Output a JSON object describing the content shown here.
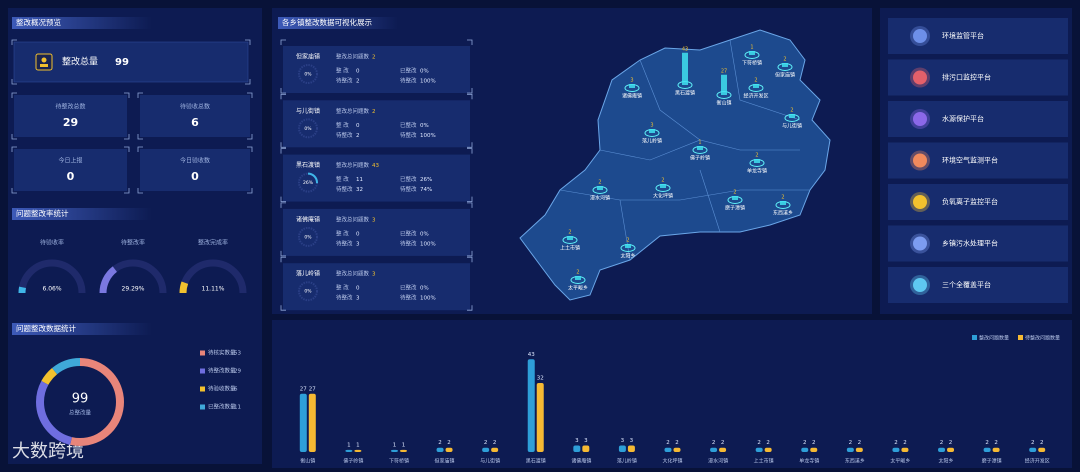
{
  "overview": {
    "title": "整改概况预览",
    "total": {
      "label": "整改总量",
      "value": 99
    },
    "stats": [
      {
        "label": "待整改总数",
        "value": 29
      },
      {
        "label": "待验收总数",
        "value": 6
      },
      {
        "label": "今日上报",
        "value": 0
      },
      {
        "label": "今日验收数",
        "value": 0
      }
    ]
  },
  "rates": {
    "title": "问题整改率统计",
    "items": [
      {
        "label": "待验收率",
        "value": 6.06,
        "value_label": "6.06%",
        "color": "#3fb6e8"
      },
      {
        "label": "待整改率",
        "value": 29.29,
        "value_label": "29.29%",
        "color": "#7a78e0"
      },
      {
        "label": "整改完成率",
        "value": 11.11,
        "value_label": "11.11%",
        "color": "#f2c12e"
      }
    ]
  },
  "donut": {
    "title": "问题整改数据统计",
    "total": 99,
    "total_label": "总整改量",
    "series": [
      {
        "name": "待核实数量",
        "value": 53,
        "color": "#e8857a"
      },
      {
        "name": "待整改数量",
        "value": 29,
        "color": "#6f6ee0"
      },
      {
        "name": "待验收数量",
        "value": 6,
        "color": "#f2c12e"
      },
      {
        "name": "已整改数量",
        "value": 11,
        "color": "#3fa9d9"
      }
    ]
  },
  "towns": {
    "title": "各乡镇整改数据可视化展示",
    "card_labels": {
      "total": "整改总问题数",
      "done": "整 改",
      "done_rate": "已整改",
      "todo": "待整改",
      "todo_rate": "待整改"
    },
    "cards": [
      {
        "name": "但家庙镇",
        "total": 2,
        "done": 0,
        "rate": 0,
        "rate_text": "0%",
        "todo": 2,
        "todo_rate": "100%"
      },
      {
        "name": "与儿街镇",
        "total": 2,
        "done": 0,
        "rate": 0,
        "rate_text": "0%",
        "todo": 2,
        "todo_rate": "100%"
      },
      {
        "name": "黑石渡镇",
        "total": 43,
        "done": 11,
        "rate": 26,
        "rate_text": "26%",
        "todo": 32,
        "todo_rate": "74%"
      },
      {
        "name": "诸佛庵镇",
        "total": 3,
        "done": 0,
        "rate": 0,
        "rate_text": "0%",
        "todo": 3,
        "todo_rate": "100%"
      },
      {
        "name": "落儿岭镇",
        "total": 3,
        "done": 0,
        "rate": 0,
        "rate_text": "0%",
        "todo": 3,
        "todo_rate": "100%"
      }
    ]
  },
  "platforms": [
    {
      "name": "环境监管平台",
      "color": "#6d8fe8"
    },
    {
      "name": "排污口监控平台",
      "color": "#e4606a"
    },
    {
      "name": "水源保护平台",
      "color": "#8b68e8"
    },
    {
      "name": "环境空气监测平台",
      "color": "#f08a5d"
    },
    {
      "name": "负氧离子监控平台",
      "color": "#f2c12e"
    },
    {
      "name": "乡镇污水处理平台",
      "color": "#7c9cf0"
    },
    {
      "name": "三个全覆盖平台",
      "color": "#5ec8f0"
    }
  ],
  "bar_chart": {
    "type": "bar",
    "categories": [
      "衡山镇",
      "佛子岭镇",
      "下符桥镇",
      "但家庙镇",
      "与儿街镇",
      "黑石渡镇",
      "诸佛庵镇",
      "落儿岭镇",
      "大化坪镇",
      "漫水河镇",
      "上土市镇",
      "单龙寺镇",
      "东西溪乡",
      "太平畈乡",
      "太阳乡",
      "磨子潭镇",
      "经济开发区"
    ],
    "series": [
      {
        "name": "整改问题数量",
        "color": "#2e9fd8",
        "values": [
          27,
          1,
          1,
          2,
          2,
          43,
          3,
          3,
          2,
          2,
          2,
          2,
          2,
          2,
          2,
          2,
          2
        ]
      },
      {
        "name": "待整改问题数量",
        "color": "#f5b933",
        "values": [
          27,
          1,
          1,
          2,
          2,
          32,
          3,
          3,
          2,
          2,
          2,
          2,
          2,
          2,
          2,
          2,
          2
        ]
      }
    ],
    "ylim": [
      0,
      45
    ]
  },
  "watermark": "大数跨境"
}
